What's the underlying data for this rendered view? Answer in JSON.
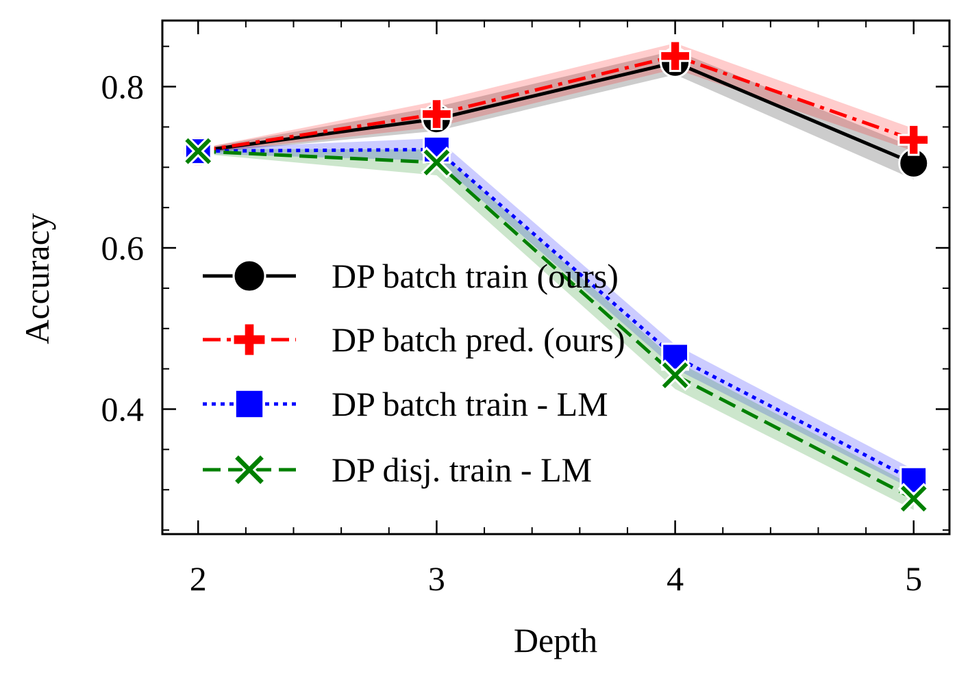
{
  "chart_data": {
    "type": "line",
    "title": "",
    "xlabel": "Depth",
    "ylabel": "Accuracy",
    "x": [
      2,
      3,
      4,
      5
    ],
    "xlim": [
      1.85,
      5.15
    ],
    "ylim": [
      0.245,
      0.882
    ],
    "x_ticks": [
      2,
      3,
      4,
      5
    ],
    "x_tick_labels": [
      "2",
      "3",
      "4",
      "5"
    ],
    "y_ticks": [
      0.4,
      0.6,
      0.8
    ],
    "y_tick_labels": [
      "0.4",
      "0.6",
      "0.8"
    ],
    "x_minor_step": 0.2,
    "y_minor_step": 0.05,
    "grid": false,
    "legend_position": "center-left",
    "series": [
      {
        "name": "DP batch train (ours)",
        "values": [
          0.72,
          0.76,
          0.83,
          0.705
        ],
        "band": [
          [
            0.717,
            0.723
          ],
          [
            0.745,
            0.775
          ],
          [
            0.815,
            0.845
          ],
          [
            0.685,
            0.725
          ]
        ],
        "color": "#000000",
        "dash": "solid",
        "marker": "circle"
      },
      {
        "name": "DP batch pred. (ours)",
        "values": [
          0.72,
          0.766,
          0.838,
          0.734
        ],
        "band": [
          [
            0.717,
            0.723
          ],
          [
            0.75,
            0.782
          ],
          [
            0.822,
            0.854
          ],
          [
            0.72,
            0.748
          ]
        ],
        "color": "#ff0000",
        "dash": "dashdot",
        "marker": "plus"
      },
      {
        "name": "DP batch train - LM",
        "values": [
          0.72,
          0.722,
          0.465,
          0.312
        ],
        "band": [
          [
            0.717,
            0.723
          ],
          [
            0.708,
            0.736
          ],
          [
            0.45,
            0.48
          ],
          [
            0.3,
            0.325
          ]
        ],
        "color": "#0000ff",
        "dash": "dotted",
        "marker": "square"
      },
      {
        "name": "DP disj. train - LM",
        "values": [
          0.72,
          0.706,
          0.442,
          0.289
        ],
        "band": [
          [
            0.717,
            0.723
          ],
          [
            0.69,
            0.722
          ],
          [
            0.425,
            0.46
          ],
          [
            0.275,
            0.305
          ]
        ],
        "color": "#008000",
        "dash": "dashed",
        "marker": "x"
      }
    ]
  }
}
